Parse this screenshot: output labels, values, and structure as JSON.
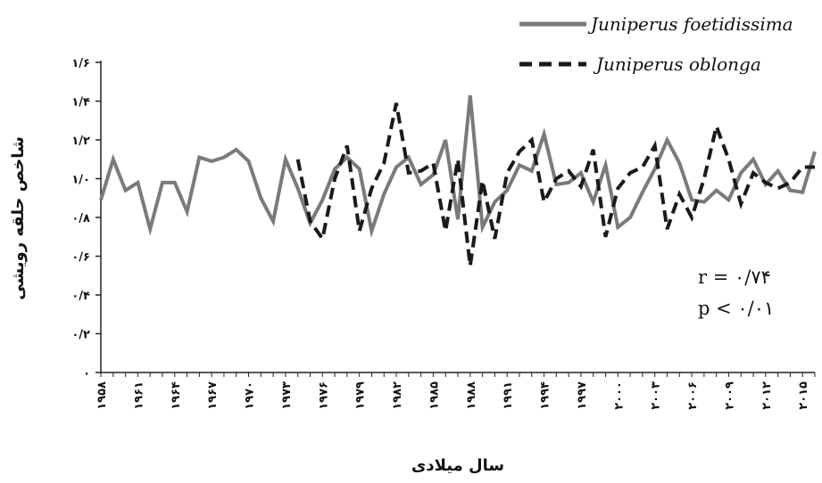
{
  "chart_data": {
    "type": "line",
    "xlabel": "سال میلادی",
    "ylabel": "شاخص حلقه رویشی",
    "ylim": [
      0,
      1.6
    ],
    "yticks": [
      {
        "v": 0,
        "label": "۰"
      },
      {
        "v": 0.2,
        "label": "۰/۲"
      },
      {
        "v": 0.4,
        "label": "۰/۴"
      },
      {
        "v": 0.6,
        "label": "۰/۶"
      },
      {
        "v": 0.8,
        "label": "۰/۸"
      },
      {
        "v": 1.0,
        "label": "۱/۰"
      },
      {
        "v": 1.2,
        "label": "۱/۲"
      },
      {
        "v": 1.4,
        "label": "۱/۴"
      },
      {
        "v": 1.6,
        "label": "۱/۶"
      }
    ],
    "xlim": [
      1958,
      2016
    ],
    "xticks": [
      {
        "v": 1958,
        "label": "۱۹۵۸"
      },
      {
        "v": 1961,
        "label": "۱۹۶۱"
      },
      {
        "v": 1964,
        "label": "۱۹۶۴"
      },
      {
        "v": 1967,
        "label": "۱۹۶۷"
      },
      {
        "v": 1970,
        "label": "۱۹۷۰"
      },
      {
        "v": 1973,
        "label": "۱۹۷۳"
      },
      {
        "v": 1976,
        "label": "۱۹۷۶"
      },
      {
        "v": 1979,
        "label": "۱۹۷۹"
      },
      {
        "v": 1982,
        "label": "۱۹۸۲"
      },
      {
        "v": 1985,
        "label": "۱۹۸۵"
      },
      {
        "v": 1988,
        "label": "۱۹۸۸"
      },
      {
        "v": 1991,
        "label": "۱۹۹۱"
      },
      {
        "v": 1994,
        "label": "۱۹۹۴"
      },
      {
        "v": 1997,
        "label": "۱۹۹۷"
      },
      {
        "v": 2000,
        "label": "۲۰۰۰"
      },
      {
        "v": 2003,
        "label": "۲۰۰۳"
      },
      {
        "v": 2006,
        "label": "۲۰۰۶"
      },
      {
        "v": 2009,
        "label": "۲۰۰۹"
      },
      {
        "v": 2012,
        "label": "۲۰۱۲"
      },
      {
        "v": 2015,
        "label": "۲۰۱۵"
      }
    ],
    "legend_position": "top-right",
    "grid": false,
    "series": [
      {
        "name": "Juniperus foetidissima",
        "style": "solid",
        "color": "#7a7a7a",
        "x": [
          1958,
          1959,
          1960,
          1961,
          1962,
          1963,
          1964,
          1965,
          1966,
          1967,
          1968,
          1969,
          1970,
          1971,
          1972,
          1973,
          1974,
          1975,
          1976,
          1977,
          1978,
          1979,
          1980,
          1981,
          1982,
          1983,
          1984,
          1985,
          1986,
          1987,
          1988,
          1989,
          1990,
          1991,
          1992,
          1993,
          1994,
          1995,
          1996,
          1997,
          1998,
          1999,
          2000,
          2001,
          2002,
          2003,
          2004,
          2005,
          2006,
          2007,
          2008,
          2009,
          2010,
          2011,
          2012,
          2013,
          2014,
          2015,
          2016
        ],
        "values": [
          0.89,
          1.1,
          0.94,
          0.98,
          0.74,
          0.98,
          0.98,
          0.83,
          1.11,
          1.09,
          1.11,
          1.15,
          1.09,
          0.9,
          0.78,
          1.1,
          0.95,
          0.77,
          0.89,
          1.05,
          1.11,
          1.05,
          0.73,
          0.92,
          1.06,
          1.11,
          0.97,
          1.02,
          1.2,
          0.79,
          1.43,
          0.75,
          0.88,
          0.94,
          1.07,
          1.04,
          1.23,
          0.97,
          0.98,
          1.03,
          0.88,
          1.07,
          0.75,
          0.8,
          0.93,
          1.05,
          1.2,
          1.08,
          0.89,
          0.88,
          0.94,
          0.89,
          1.03,
          1.1,
          0.97,
          1.04,
          0.94,
          0.93,
          1.14
        ]
      },
      {
        "name": "Juniperus oblonga",
        "style": "dashed",
        "color": "#1a1a1a",
        "x": [
          1974,
          1975,
          1976,
          1977,
          1978,
          1979,
          1980,
          1981,
          1982,
          1983,
          1984,
          1985,
          1986,
          1987,
          1988,
          1989,
          1990,
          1991,
          1992,
          1993,
          1994,
          1995,
          1996,
          1997,
          1998,
          1999,
          2000,
          2001,
          2002,
          2003,
          2004,
          2005,
          2006,
          2007,
          2008,
          2009,
          2010,
          2011,
          2012,
          2013,
          2014,
          2015,
          2016
        ],
        "values": [
          1.1,
          0.78,
          0.69,
          1.0,
          1.17,
          0.73,
          0.95,
          1.08,
          1.39,
          1.03,
          1.04,
          1.08,
          0.73,
          1.1,
          0.55,
          0.99,
          0.69,
          1.03,
          1.14,
          1.2,
          0.88,
          1.0,
          1.04,
          0.96,
          1.15,
          0.7,
          0.95,
          1.03,
          1.06,
          1.17,
          0.74,
          0.92,
          0.8,
          1.0,
          1.27,
          1.1,
          0.87,
          1.03,
          0.98,
          0.95,
          0.98,
          1.06,
          1.06
        ]
      }
    ],
    "annotations": [
      "r = ۰/۷۴",
      "p < ۰/۰۱"
    ]
  }
}
